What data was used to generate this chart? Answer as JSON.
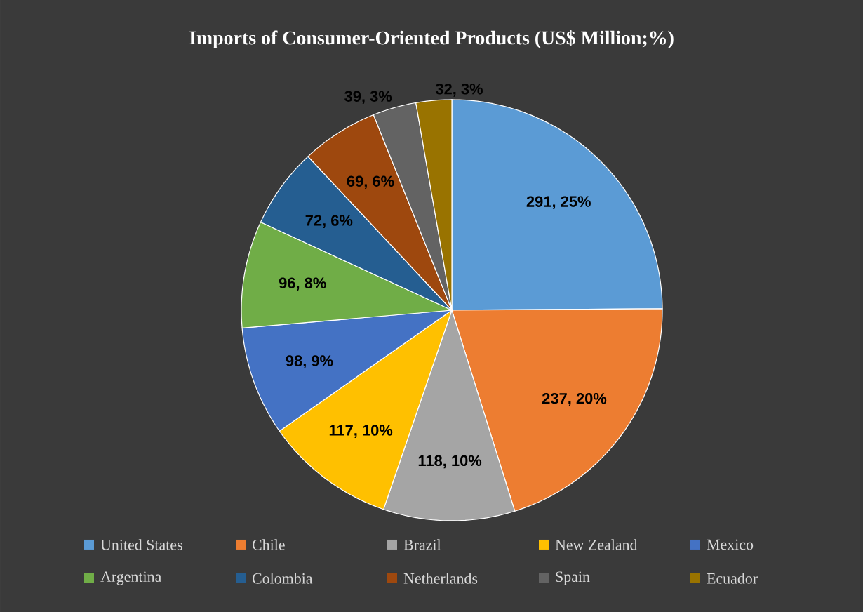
{
  "chart_data": {
    "type": "pie",
    "title": "Imports of Consumer-Oriented Products (US$ Million;%)",
    "categories": [
      "United States",
      "Chile",
      "Brazil",
      "New Zealand",
      "Mexico",
      "Argentina",
      "Colombia",
      "Netherlands",
      "Spain",
      "Ecuador"
    ],
    "values": [
      291,
      237,
      118,
      117,
      98,
      96,
      72,
      69,
      39,
      32
    ],
    "value_labels": [
      "291, 25%",
      "237, 20%",
      "118, 10%",
      "117, 10%",
      "98, 9%",
      "96, 8%",
      "72, 6%",
      "69, 6%",
      "39, 3%",
      "32, 3%"
    ],
    "colors": [
      "#5b9bd5",
      "#ed7d31",
      "#a5a5a5",
      "#ffc000",
      "#4472c4",
      "#70ad47",
      "#255e91",
      "#9e480e",
      "#636363",
      "#997300"
    ],
    "legend": "bottom"
  }
}
